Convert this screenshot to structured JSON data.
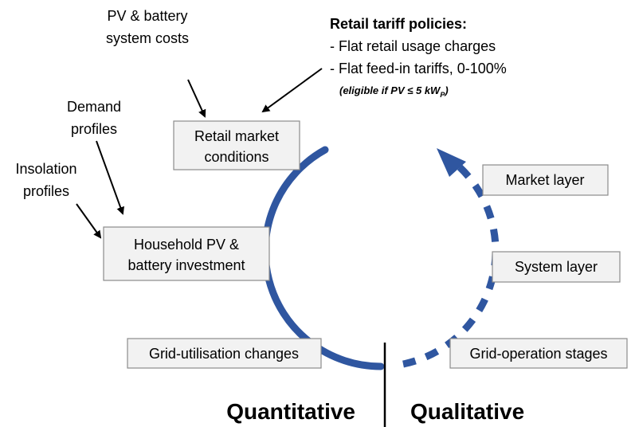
{
  "inputs": {
    "costs": [
      "PV & battery",
      "system costs"
    ],
    "demand": [
      "Demand",
      "profiles"
    ],
    "insolation": [
      "Insolation",
      "profiles"
    ],
    "tariff": {
      "heading": "Retail tariff policies:",
      "items": [
        "- Flat retail usage charges",
        "- Flat feed-in tariffs, 0-100%"
      ],
      "note": {
        "text": "(eligible if PV ≤ 5 kW",
        "subscript": "P",
        "suffix": ")"
      }
    }
  },
  "boxes": {
    "retail": [
      "Retail market",
      "conditions"
    ],
    "household": [
      "Household PV &",
      "battery investment"
    ],
    "grid_utilisation": [
      "Grid-utilisation changes"
    ],
    "market_layer": [
      "Market layer"
    ],
    "system_layer": [
      "System layer"
    ],
    "grid_operation": [
      "Grid-operation stages"
    ]
  },
  "labels": {
    "left": "Quantitative",
    "right": "Qualitative"
  }
}
